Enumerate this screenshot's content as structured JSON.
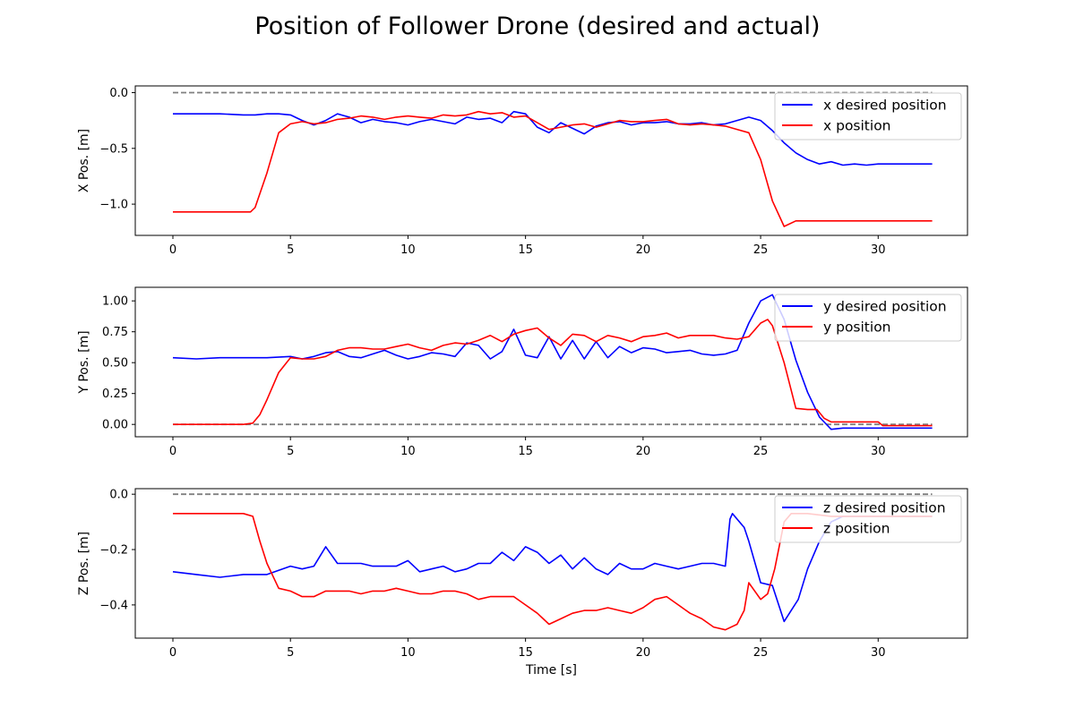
{
  "figure": {
    "title": "Position of Follower Drone (desired and actual)"
  },
  "colors": {
    "desired": "#0000ff",
    "actual": "#ff0000",
    "reference": "#808080"
  },
  "chart_data": [
    {
      "type": "line",
      "xlabel": "",
      "ylabel": "X Pos. [m]",
      "xlim": [
        -1.6,
        33.8
      ],
      "ylim": [
        -1.28,
        0.06
      ],
      "xticks": [
        0,
        5,
        10,
        15,
        20,
        25,
        30
      ],
      "yticks": [
        0.0,
        -0.5,
        -1.0
      ],
      "ytick_labels": [
        "0.0",
        "−0.5",
        "−1.0"
      ],
      "legend_position": "top-right",
      "reference": {
        "x": [
          0,
          32.3
        ],
        "y": [
          0,
          0
        ],
        "style": "dashed"
      },
      "series": [
        {
          "name": "x desired position",
          "color": "#0000ff",
          "x": [
            0,
            1,
            2,
            3,
            3.5,
            4,
            4.5,
            5,
            5.5,
            6,
            6.5,
            7,
            7.5,
            8,
            8.5,
            9,
            9.5,
            10,
            10.5,
            11,
            11.5,
            12,
            12.5,
            13,
            13.5,
            14,
            14.5,
            15,
            15.5,
            16,
            16.5,
            17,
            17.5,
            18,
            18.5,
            19,
            19.5,
            20,
            20.5,
            21,
            21.5,
            22,
            22.5,
            23,
            23.5,
            24,
            24.5,
            25,
            25.5,
            26,
            26.5,
            27,
            27.5,
            28,
            28.5,
            29,
            29.5,
            30,
            31,
            32.3
          ],
          "y": [
            -0.19,
            -0.19,
            -0.19,
            -0.2,
            -0.2,
            -0.19,
            -0.19,
            -0.2,
            -0.25,
            -0.29,
            -0.25,
            -0.19,
            -0.22,
            -0.27,
            -0.24,
            -0.26,
            -0.27,
            -0.29,
            -0.26,
            -0.24,
            -0.26,
            -0.28,
            -0.22,
            -0.24,
            -0.23,
            -0.27,
            -0.17,
            -0.19,
            -0.31,
            -0.36,
            -0.27,
            -0.32,
            -0.37,
            -0.3,
            -0.27,
            -0.26,
            -0.29,
            -0.27,
            -0.27,
            -0.26,
            -0.28,
            -0.28,
            -0.27,
            -0.29,
            -0.28,
            -0.25,
            -0.22,
            -0.25,
            -0.34,
            -0.45,
            -0.54,
            -0.6,
            -0.64,
            -0.62,
            -0.65,
            -0.64,
            -0.65,
            -0.64,
            -0.64,
            -0.64
          ]
        },
        {
          "name": "x position",
          "color": "#ff0000",
          "x": [
            0,
            1,
            2,
            3,
            3.3,
            3.5,
            4,
            4.5,
            5,
            5.5,
            6,
            6.5,
            7,
            7.5,
            8,
            8.5,
            9,
            9.5,
            10,
            10.5,
            11,
            11.5,
            12,
            12.5,
            13,
            13.5,
            14,
            14.5,
            15,
            15.5,
            16,
            16.5,
            17,
            17.5,
            18,
            18.5,
            19,
            19.5,
            20,
            20.5,
            21,
            21.5,
            22,
            22.5,
            23,
            23.5,
            24,
            24.5,
            25,
            25.5,
            26,
            26.5,
            27,
            28,
            29,
            30,
            31,
            32.3
          ],
          "y": [
            -1.07,
            -1.07,
            -1.07,
            -1.07,
            -1.07,
            -1.03,
            -0.72,
            -0.36,
            -0.28,
            -0.26,
            -0.28,
            -0.27,
            -0.24,
            -0.23,
            -0.21,
            -0.22,
            -0.24,
            -0.22,
            -0.21,
            -0.22,
            -0.23,
            -0.2,
            -0.21,
            -0.2,
            -0.17,
            -0.19,
            -0.18,
            -0.22,
            -0.21,
            -0.27,
            -0.33,
            -0.31,
            -0.29,
            -0.28,
            -0.31,
            -0.28,
            -0.25,
            -0.26,
            -0.26,
            -0.25,
            -0.24,
            -0.28,
            -0.29,
            -0.28,
            -0.29,
            -0.3,
            -0.33,
            -0.36,
            -0.6,
            -0.97,
            -1.2,
            -1.15,
            -1.15,
            -1.15,
            -1.15,
            -1.15,
            -1.15,
            -1.15
          ]
        }
      ]
    },
    {
      "type": "line",
      "xlabel": "",
      "ylabel": "Y Pos. [m]",
      "xlim": [
        -1.6,
        33.8
      ],
      "ylim": [
        -0.1,
        1.11
      ],
      "xticks": [
        0,
        5,
        10,
        15,
        20,
        25,
        30
      ],
      "yticks": [
        1.0,
        0.75,
        0.5,
        0.25,
        0.0
      ],
      "ytick_labels": [
        "1.00",
        "0.75",
        "0.50",
        "0.25",
        "0.00"
      ],
      "legend_position": "top-right",
      "reference": {
        "x": [
          0,
          32.3
        ],
        "y": [
          0,
          0
        ],
        "style": "dashed"
      },
      "series": [
        {
          "name": "y desired position",
          "color": "#0000ff",
          "x": [
            0,
            1,
            2,
            3,
            4,
            5,
            5.5,
            6,
            6.5,
            7,
            7.5,
            8,
            8.5,
            9,
            9.5,
            10,
            10.5,
            11,
            11.5,
            12,
            12.5,
            13,
            13.5,
            14,
            14.5,
            15,
            15.5,
            16,
            16.5,
            17,
            17.5,
            18,
            18.5,
            19,
            19.5,
            20,
            20.5,
            21,
            21.5,
            22,
            22.5,
            23,
            23.5,
            24,
            24.5,
            25,
            25.5,
            26,
            26.5,
            27,
            27.5,
            28,
            28.5,
            29,
            30,
            31,
            32.3
          ],
          "y": [
            0.54,
            0.53,
            0.54,
            0.54,
            0.54,
            0.55,
            0.53,
            0.55,
            0.58,
            0.59,
            0.55,
            0.54,
            0.57,
            0.6,
            0.56,
            0.53,
            0.55,
            0.58,
            0.57,
            0.55,
            0.66,
            0.64,
            0.53,
            0.59,
            0.77,
            0.56,
            0.54,
            0.71,
            0.53,
            0.68,
            0.53,
            0.67,
            0.54,
            0.63,
            0.58,
            0.62,
            0.61,
            0.58,
            0.59,
            0.6,
            0.57,
            0.56,
            0.57,
            0.6,
            0.82,
            1.0,
            1.05,
            0.85,
            0.52,
            0.26,
            0.06,
            -0.04,
            -0.03,
            -0.03,
            -0.03,
            -0.03,
            -0.03
          ]
        },
        {
          "name": "y position",
          "color": "#ff0000",
          "x": [
            0,
            1,
            2,
            3,
            3.4,
            3.7,
            4,
            4.5,
            5,
            5.5,
            6,
            6.5,
            7,
            7.5,
            8,
            8.5,
            9,
            9.5,
            10,
            10.5,
            11,
            11.5,
            12,
            12.5,
            13,
            13.5,
            14,
            14.5,
            15,
            15.5,
            16,
            16.5,
            17,
            17.5,
            18,
            18.5,
            19,
            19.5,
            20,
            20.5,
            21,
            21.5,
            22,
            22.5,
            23,
            23.5,
            24,
            24.5,
            25,
            25.3,
            25.5,
            26,
            26.5,
            27,
            27.4,
            27.7,
            28,
            29,
            30,
            30.2,
            31,
            32.3
          ],
          "y": [
            0.0,
            0.0,
            0.0,
            0.0,
            0.01,
            0.08,
            0.2,
            0.42,
            0.54,
            0.53,
            0.53,
            0.55,
            0.6,
            0.62,
            0.62,
            0.61,
            0.61,
            0.63,
            0.65,
            0.62,
            0.6,
            0.64,
            0.66,
            0.65,
            0.68,
            0.72,
            0.67,
            0.73,
            0.76,
            0.78,
            0.7,
            0.64,
            0.73,
            0.72,
            0.67,
            0.72,
            0.7,
            0.67,
            0.71,
            0.72,
            0.74,
            0.7,
            0.72,
            0.72,
            0.72,
            0.7,
            0.69,
            0.71,
            0.82,
            0.85,
            0.8,
            0.5,
            0.13,
            0.12,
            0.12,
            0.05,
            0.02,
            0.02,
            0.02,
            -0.01,
            -0.01,
            -0.01
          ]
        }
      ]
    },
    {
      "type": "line",
      "xlabel": "Time [s]",
      "ylabel": "Z Pos. [m]",
      "xlim": [
        -1.6,
        33.8
      ],
      "ylim": [
        -0.52,
        0.02
      ],
      "xticks": [
        0,
        5,
        10,
        15,
        20,
        25,
        30
      ],
      "yticks": [
        0.0,
        -0.2,
        -0.4
      ],
      "ytick_labels": [
        "0.0",
        "−0.2",
        "−0.4"
      ],
      "legend_position": "top-right",
      "reference": {
        "x": [
          0,
          32.3
        ],
        "y": [
          0,
          0
        ],
        "style": "dashed"
      },
      "series": [
        {
          "name": "z desired position",
          "color": "#0000ff",
          "x": [
            0,
            1,
            2,
            3,
            4,
            5,
            5.5,
            6,
            6.5,
            7,
            7.5,
            8,
            8.5,
            9,
            9.5,
            10,
            10.5,
            11,
            11.5,
            12,
            12.5,
            13,
            13.5,
            14,
            14.5,
            15,
            15.5,
            16,
            16.5,
            17,
            17.5,
            18,
            18.5,
            19,
            19.5,
            20,
            20.5,
            21,
            21.5,
            22,
            22.5,
            23,
            23.5,
            23.7,
            23.8,
            24,
            24.3,
            24.5,
            25,
            25.5,
            26,
            26.3,
            26.6,
            27,
            27.5,
            28,
            28.5,
            29,
            30,
            31,
            32.3
          ],
          "y": [
            -0.28,
            -0.29,
            -0.3,
            -0.29,
            -0.29,
            -0.26,
            -0.27,
            -0.26,
            -0.19,
            -0.25,
            -0.25,
            -0.25,
            -0.26,
            -0.26,
            -0.26,
            -0.24,
            -0.28,
            -0.27,
            -0.26,
            -0.28,
            -0.27,
            -0.25,
            -0.25,
            -0.21,
            -0.24,
            -0.19,
            -0.21,
            -0.25,
            -0.22,
            -0.27,
            -0.23,
            -0.27,
            -0.29,
            -0.25,
            -0.27,
            -0.27,
            -0.25,
            -0.26,
            -0.27,
            -0.26,
            -0.25,
            -0.25,
            -0.26,
            -0.09,
            -0.07,
            -0.09,
            -0.12,
            -0.17,
            -0.32,
            -0.33,
            -0.46,
            -0.42,
            -0.38,
            -0.27,
            -0.17,
            -0.1,
            -0.08,
            -0.08,
            -0.08,
            -0.08,
            -0.08
          ]
        },
        {
          "name": "z position",
          "color": "#ff0000",
          "x": [
            0,
            1,
            2,
            3,
            3.4,
            3.7,
            4,
            4.5,
            5,
            5.5,
            6,
            6.5,
            7,
            7.5,
            8,
            8.5,
            9,
            9.5,
            10,
            10.5,
            11,
            11.5,
            12,
            12.5,
            13,
            13.5,
            14,
            14.5,
            15,
            15.5,
            16,
            16.5,
            17,
            17.5,
            18,
            18.5,
            19,
            19.5,
            20,
            20.5,
            21,
            21.5,
            22,
            22.5,
            23,
            23.5,
            24,
            24.3,
            24.5,
            25,
            25.3,
            25.6,
            26,
            26.3,
            26.6,
            27,
            28,
            29,
            30,
            31,
            32.3
          ],
          "y": [
            -0.07,
            -0.07,
            -0.07,
            -0.07,
            -0.08,
            -0.17,
            -0.25,
            -0.34,
            -0.35,
            -0.37,
            -0.37,
            -0.35,
            -0.35,
            -0.35,
            -0.36,
            -0.35,
            -0.35,
            -0.34,
            -0.35,
            -0.36,
            -0.36,
            -0.35,
            -0.35,
            -0.36,
            -0.38,
            -0.37,
            -0.37,
            -0.37,
            -0.4,
            -0.43,
            -0.47,
            -0.45,
            -0.43,
            -0.42,
            -0.42,
            -0.41,
            -0.42,
            -0.43,
            -0.41,
            -0.38,
            -0.37,
            -0.4,
            -0.43,
            -0.45,
            -0.48,
            -0.49,
            -0.47,
            -0.42,
            -0.32,
            -0.38,
            -0.36,
            -0.27,
            -0.1,
            -0.07,
            -0.07,
            -0.07,
            -0.08,
            -0.08,
            -0.08,
            -0.08,
            -0.08
          ]
        }
      ]
    }
  ]
}
